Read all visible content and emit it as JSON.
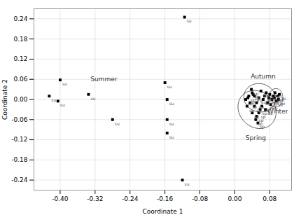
{
  "chart_data": {
    "type": "scatter",
    "xlabel": "Coordinate 1",
    "ylabel": "Coordinate 2",
    "xlim": [
      -0.46,
      0.13
    ],
    "ylim": [
      -0.27,
      0.27
    ],
    "xticks": [
      {
        "value": -0.4,
        "label": "-0.40"
      },
      -0.32,
      -0.24,
      -0.16,
      -0.08,
      {
        "value": 0,
        "label": "0.00"
      },
      0.08
    ],
    "yticks": [
      -0.24,
      -0.18,
      -0.12,
      -0.06,
      {
        "value": 0,
        "label": "0.00"
      },
      0.06,
      0.12,
      0.18,
      0.24
    ],
    "grid": true,
    "marker": "square",
    "points": [
      {
        "x": -0.425,
        "y": 0.01,
        "label": "su"
      },
      {
        "x": -0.4,
        "y": 0.058,
        "label": "su"
      },
      {
        "x": -0.405,
        "y": -0.005,
        "label": "su"
      },
      {
        "x": -0.335,
        "y": 0.015,
        "label": "su"
      },
      {
        "x": -0.28,
        "y": -0.06,
        "label": "su"
      },
      {
        "x": -0.115,
        "y": 0.245,
        "label": "su"
      },
      {
        "x": -0.16,
        "y": 0.05,
        "label": "su"
      },
      {
        "x": -0.155,
        "y": 0.0,
        "label": "su"
      },
      {
        "x": -0.155,
        "y": -0.06,
        "label": "su"
      },
      {
        "x": -0.155,
        "y": -0.1,
        "label": "su"
      },
      {
        "x": -0.12,
        "y": -0.24,
        "label": "su"
      },
      {
        "x": 0.04,
        "y": 0.02,
        "label": "au"
      },
      {
        "x": 0.045,
        "y": 0.01,
        "label": "au"
      },
      {
        "x": 0.05,
        "y": -0.01,
        "label": "au"
      },
      {
        "x": 0.055,
        "y": 0.005,
        "label": "au"
      },
      {
        "x": 0.06,
        "y": 0.025,
        "label": "au"
      },
      {
        "x": 0.062,
        "y": -0.02,
        "label": "au"
      },
      {
        "x": 0.065,
        "y": 0.0,
        "label": "au"
      },
      {
        "x": 0.068,
        "y": 0.01,
        "label": "au"
      },
      {
        "x": 0.07,
        "y": -0.03,
        "label": "au"
      },
      {
        "x": 0.072,
        "y": 0.02,
        "label": "au"
      },
      {
        "x": 0.075,
        "y": -0.01,
        "label": "au"
      },
      {
        "x": 0.078,
        "y": 0.005,
        "label": "au"
      },
      {
        "x": 0.08,
        "y": 0.015,
        "label": "sp"
      },
      {
        "x": 0.082,
        "y": -0.015,
        "label": "sp"
      },
      {
        "x": 0.085,
        "y": 0.0,
        "label": "sp"
      },
      {
        "x": 0.088,
        "y": 0.01,
        "label": "sp"
      },
      {
        "x": 0.03,
        "y": 0.005,
        "label": "sp"
      },
      {
        "x": 0.035,
        "y": -0.01,
        "label": "sp"
      },
      {
        "x": 0.038,
        "y": 0.03,
        "label": "sp"
      },
      {
        "x": 0.04,
        "y": -0.04,
        "label": "sp"
      },
      {
        "x": 0.042,
        "y": 0.015,
        "label": "sp"
      },
      {
        "x": 0.045,
        "y": -0.02,
        "label": "sp"
      },
      {
        "x": 0.048,
        "y": -0.06,
        "label": "sp"
      },
      {
        "x": 0.05,
        "y": -0.05,
        "label": "sp"
      },
      {
        "x": 0.053,
        "y": -0.07,
        "label": "sp"
      },
      {
        "x": 0.055,
        "y": -0.04,
        "label": "sp"
      },
      {
        "x": 0.058,
        "y": -0.03,
        "label": "sp"
      },
      {
        "x": 0.025,
        "y": 0.0,
        "label": "sp"
      },
      {
        "x": 0.028,
        "y": -0.02,
        "label": "sp"
      },
      {
        "x": 0.032,
        "y": 0.01,
        "label": "sp"
      },
      {
        "x": 0.09,
        "y": 0.005,
        "label": "wi"
      },
      {
        "x": 0.092,
        "y": 0.02,
        "label": "wi"
      },
      {
        "x": 0.095,
        "y": -0.005,
        "label": "wi"
      },
      {
        "x": 0.098,
        "y": 0.01,
        "label": "wi"
      },
      {
        "x": 0.1,
        "y": 0.0,
        "label": "wi"
      },
      {
        "x": 0.102,
        "y": 0.015,
        "label": "wi"
      }
    ],
    "ellipses": [
      {
        "cx": 0.057,
        "cy": 0.005,
        "width": 0.072,
        "height": 0.085,
        "angle": 10
      },
      {
        "cx": 0.051,
        "cy": -0.03,
        "width": 0.085,
        "height": 0.115,
        "angle": 15
      },
      {
        "cx": 0.094,
        "cy": 0.005,
        "width": 0.032,
        "height": 0.055,
        "angle": 0
      }
    ],
    "annotations": [
      {
        "text": "Summer",
        "x": -0.3,
        "y": 0.06
      },
      {
        "text": "Autumn",
        "x": 0.065,
        "y": 0.068
      },
      {
        "text": "Spring",
        "x": 0.048,
        "y": -0.115
      },
      {
        "text": "Winter",
        "x": 0.098,
        "y": -0.035
      }
    ]
  }
}
